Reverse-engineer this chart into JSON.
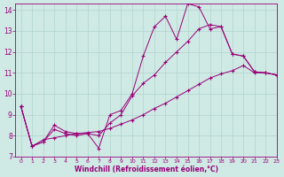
{
  "title": "",
  "xlabel": "Windchill (Refroidissement éolien,°C)",
  "ylabel": "",
  "xlim": [
    -0.5,
    23
  ],
  "ylim": [
    7,
    14.3
  ],
  "yticks": [
    7,
    8,
    9,
    10,
    11,
    12,
    13,
    14
  ],
  "xticks": [
    0,
    1,
    2,
    3,
    4,
    5,
    6,
    7,
    8,
    9,
    10,
    11,
    12,
    13,
    14,
    15,
    16,
    17,
    18,
    19,
    20,
    21,
    22,
    23
  ],
  "background_color": "#cfe9e5",
  "grid_color": "#b0d4cc",
  "line_color": "#990077",
  "line1_x": [
    0,
    1,
    2,
    3,
    4,
    5,
    6,
    7,
    8,
    9,
    10,
    11,
    12,
    13,
    14,
    15,
    16,
    17,
    18,
    19,
    20,
    21,
    22,
    23
  ],
  "line1_y": [
    9.4,
    7.5,
    7.7,
    8.5,
    8.2,
    8.1,
    8.1,
    7.4,
    9.0,
    9.2,
    10.0,
    11.8,
    13.2,
    13.7,
    12.6,
    14.3,
    14.15,
    13.1,
    13.2,
    11.9,
    11.8,
    11.05,
    11.0,
    10.9
  ],
  "line2_x": [
    0,
    1,
    2,
    3,
    4,
    5,
    6,
    7,
    8,
    9,
    10,
    11,
    12,
    13,
    14,
    15,
    16,
    17,
    18,
    19,
    20,
    21,
    22,
    23
  ],
  "line2_y": [
    9.4,
    7.5,
    7.7,
    8.3,
    8.1,
    8.0,
    8.1,
    8.0,
    8.6,
    9.0,
    9.9,
    10.5,
    10.9,
    11.5,
    12.0,
    12.5,
    13.1,
    13.3,
    13.2,
    11.9,
    11.8,
    11.05,
    11.0,
    10.9
  ],
  "line3_x": [
    0,
    1,
    2,
    3,
    4,
    5,
    6,
    7,
    8,
    9,
    10,
    11,
    12,
    13,
    14,
    15,
    16,
    17,
    18,
    19,
    20,
    21,
    22,
    23
  ],
  "line3_y": [
    9.4,
    7.5,
    7.8,
    7.9,
    8.0,
    8.1,
    8.15,
    8.2,
    8.35,
    8.55,
    8.75,
    9.0,
    9.3,
    9.55,
    9.85,
    10.15,
    10.45,
    10.75,
    10.95,
    11.1,
    11.35,
    11.0,
    11.0,
    10.9
  ],
  "figsize": [
    3.2,
    2.0
  ],
  "dpi": 100
}
